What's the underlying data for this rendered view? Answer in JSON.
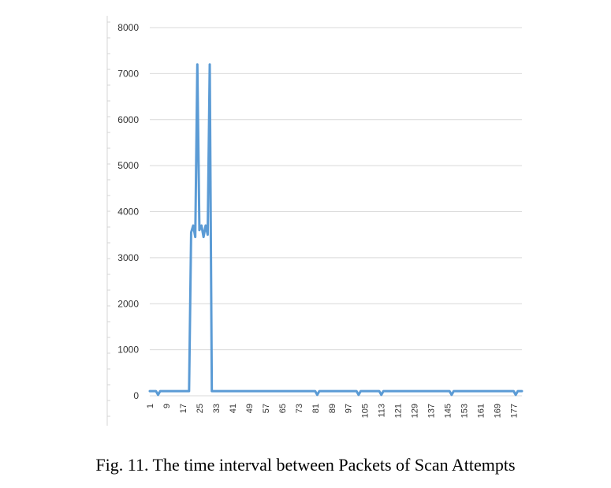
{
  "caption": "Fig. 11.  The time interval between Packets of Scan Attempts",
  "chart_data": {
    "type": "line",
    "title": "",
    "xlabel": "",
    "ylabel": "",
    "ylim": [
      0,
      8000
    ],
    "y_ticks": [
      0,
      1000,
      2000,
      3000,
      4000,
      5000,
      6000,
      7000,
      8000
    ],
    "y_tick_labels": [
      "0",
      "1000",
      "2000",
      "3000",
      "4000",
      "5000",
      "6000",
      "7000",
      "8000"
    ],
    "x_range": [
      1,
      181
    ],
    "x_ticks": [
      1,
      9,
      17,
      25,
      33,
      41,
      49,
      57,
      65,
      73,
      81,
      89,
      97,
      105,
      113,
      121,
      129,
      137,
      145,
      153,
      161,
      169,
      177
    ],
    "x_tick_labels": [
      "1",
      "9",
      "17",
      "25",
      "33",
      "41",
      "49",
      "57",
      "65",
      "73",
      "81",
      "89",
      "97",
      "105",
      "113",
      "121",
      "129",
      "137",
      "145",
      "153",
      "161",
      "169",
      "177"
    ],
    "grid": true,
    "legend": "none",
    "series": [
      {
        "color": "#5b9bd5",
        "points": [
          [
            1,
            100
          ],
          [
            4,
            100
          ],
          [
            5,
            20
          ],
          [
            6,
            100
          ],
          [
            20,
            100
          ],
          [
            21,
            3550
          ],
          [
            22,
            3700
          ],
          [
            23,
            3450
          ],
          [
            24,
            7200
          ],
          [
            25,
            3600
          ],
          [
            26,
            3700
          ],
          [
            27,
            3450
          ],
          [
            28,
            3700
          ],
          [
            29,
            3500
          ],
          [
            30,
            7200
          ],
          [
            31,
            100
          ],
          [
            81,
            100
          ],
          [
            82,
            20
          ],
          [
            83,
            100
          ],
          [
            101,
            100
          ],
          [
            102,
            20
          ],
          [
            103,
            100
          ],
          [
            112,
            100
          ],
          [
            113,
            20
          ],
          [
            114,
            100
          ],
          [
            146,
            100
          ],
          [
            147,
            20
          ],
          [
            148,
            100
          ],
          [
            177,
            100
          ],
          [
            178,
            20
          ],
          [
            179,
            100
          ],
          [
            181,
            100
          ]
        ]
      }
    ]
  }
}
